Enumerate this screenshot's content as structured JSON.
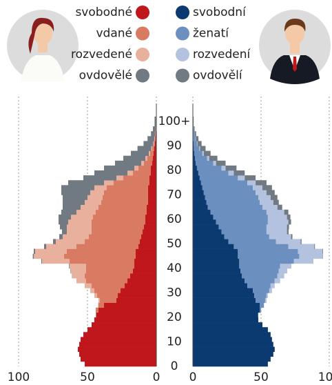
{
  "chart_data": [
    {
      "type": "bar",
      "orientation": "horizontal",
      "stacked": true,
      "y": [
        0,
        2,
        4,
        6,
        8,
        10,
        12,
        14,
        16,
        18,
        20,
        22,
        24,
        26,
        28,
        30,
        32,
        34,
        36,
        38,
        40,
        42,
        44,
        46,
        48,
        50,
        52,
        54,
        56,
        58,
        60,
        62,
        64,
        66,
        68,
        70,
        72,
        74,
        76,
        78,
        80,
        82,
        84,
        86,
        88,
        90,
        92,
        94,
        96,
        98,
        100
      ],
      "xlim": [
        100,
        0
      ],
      "xticks": [
        100,
        50,
        0
      ],
      "grid": true,
      "ylim": [
        0,
        102
      ],
      "yticks": [
        0,
        10,
        20,
        30,
        40,
        50,
        60,
        70,
        80,
        90,
        {
          "value": 100,
          "label": "100+"
        }
      ],
      "series": [
        {
          "name": "svobodné",
          "color": "#c0171c",
          "values": [
            52,
            55,
            56,
            57,
            56,
            55,
            53,
            50,
            47,
            45,
            43.5,
            42,
            38,
            29,
            28,
            26,
            23,
            21,
            19,
            17,
            16,
            16,
            15,
            15,
            13,
            12,
            11,
            10,
            9,
            8,
            8,
            7,
            7,
            6,
            6,
            6,
            6,
            5,
            5,
            4,
            4,
            3,
            2.5,
            2,
            1.5,
            1,
            0.7,
            0.5,
            0.3,
            0.2,
            0.2
          ]
        },
        {
          "name": "vdané",
          "color": "#d97b63",
          "values": [
            0,
            0,
            0,
            0,
            0,
            0,
            0,
            0,
            0,
            0.1,
            0.5,
            2,
            4,
            12,
            15,
            19,
            24,
            30,
            33,
            34,
            35,
            47,
            52,
            50,
            45,
            40,
            38,
            37,
            38,
            39,
            38,
            37,
            35,
            34,
            33,
            32,
            30,
            26,
            19,
            13,
            9,
            6,
            4,
            2.5,
            1.5,
            0.8,
            0.4,
            0.2,
            0.1,
            0.05,
            0.05
          ]
        },
        {
          "name": "rozvedené",
          "color": "#e9b09d",
          "values": [
            0,
            0,
            0,
            0,
            0,
            0,
            0,
            0,
            0,
            0,
            0,
            0,
            0.3,
            1,
            2,
            3,
            5,
            7,
            9,
            11,
            12,
            20,
            22,
            23,
            22,
            21,
            19,
            18,
            18,
            17,
            16,
            14,
            13,
            12,
            11,
            10,
            9,
            7,
            5,
            4,
            3,
            2,
            1.5,
            1,
            0.7,
            0.5,
            0.3,
            0.2,
            0.1,
            0.05,
            0.05
          ]
        },
        {
          "name": "ovdovělé",
          "color": "#717a82",
          "values": [
            0,
            0,
            0,
            0,
            0,
            0,
            0,
            0,
            0,
            0,
            0,
            0,
            0,
            0,
            0,
            0,
            0,
            0,
            0.2,
            0.3,
            0.4,
            0.5,
            0.7,
            1,
            1.5,
            2,
            2.5,
            3.5,
            5,
            7,
            9,
            11,
            13,
            16,
            18,
            21,
            24,
            26,
            24,
            24,
            22,
            19,
            16,
            13,
            10,
            7,
            5,
            3,
            2,
            1,
            1
          ]
        }
      ]
    },
    {
      "type": "bar",
      "orientation": "horizontal",
      "stacked": true,
      "y": [
        0,
        2,
        4,
        6,
        8,
        10,
        12,
        14,
        16,
        18,
        20,
        22,
        24,
        26,
        28,
        30,
        32,
        34,
        36,
        38,
        40,
        42,
        44,
        46,
        48,
        50,
        52,
        54,
        56,
        58,
        60,
        62,
        64,
        66,
        68,
        70,
        72,
        74,
        76,
        78,
        80,
        82,
        84,
        86,
        88,
        90,
        92,
        94,
        96,
        98,
        100
      ],
      "xlim": [
        0,
        100
      ],
      "xticks": [
        0,
        50,
        100
      ],
      "grid": true,
      "ylim": [
        0,
        102
      ],
      "series": [
        {
          "name": "svobodní",
          "color": "#0b3a70",
          "values": [
            55,
            57,
            59,
            60,
            59,
            58,
            57,
            55,
            51,
            48,
            47.8,
            49,
            49,
            46,
            45,
            44,
            40,
            38,
            36,
            35,
            34,
            34,
            33,
            33,
            30,
            26,
            23,
            21,
            19,
            17,
            15,
            13,
            11,
            10,
            9,
            8,
            7,
            6,
            5,
            4,
            3,
            2,
            1.5,
            1,
            0.7,
            0.5,
            0.3,
            0.2,
            0.1,
            0.05,
            0.05
          ]
        },
        {
          "name": "ženatí",
          "color": "#6b8fbf",
          "values": [
            0,
            0,
            0,
            0,
            0,
            0,
            0,
            0,
            0,
            0,
            0.2,
            1,
            3,
            7,
            9,
            12,
            17,
            22,
            26,
            28,
            30,
            40,
            45,
            44,
            40,
            35,
            33,
            33,
            35,
            38,
            40,
            41,
            40,
            39,
            39,
            38,
            37,
            34,
            28,
            22,
            18,
            13,
            9,
            6,
            4,
            2.5,
            1.5,
            0.8,
            0.4,
            0.2,
            0.2
          ]
        },
        {
          "name": "rozvedení",
          "color": "#b3c3df",
          "values": [
            0,
            0,
            0,
            0,
            0,
            0,
            0,
            0,
            0,
            0,
            0,
            0,
            0.2,
            1,
            1,
            2,
            3,
            4,
            5,
            6,
            8,
            14,
            17,
            18,
            19,
            18,
            16,
            15,
            15,
            15,
            14,
            13,
            11,
            10,
            9,
            8,
            7,
            6,
            5,
            4,
            3,
            2,
            1.5,
            1,
            0.6,
            0.4,
            0.3,
            0.2,
            0.1,
            0.05,
            0.05
          ]
        },
        {
          "name": "ovdovělí",
          "color": "#717a82",
          "values": [
            0,
            0,
            0,
            0,
            0,
            0,
            0,
            0,
            0,
            0,
            0,
            0,
            0,
            0,
            0,
            0,
            0,
            0,
            0,
            0.1,
            0.1,
            0.2,
            0.3,
            0.4,
            0.5,
            0.7,
            1,
            1.2,
            1.5,
            2,
            2.5,
            3,
            3.5,
            4,
            5,
            6,
            7,
            8,
            8,
            8,
            8,
            7,
            6,
            5,
            4,
            3,
            2,
            1.2,
            0.7,
            0.3,
            0.3
          ]
        }
      ]
    }
  ]
}
